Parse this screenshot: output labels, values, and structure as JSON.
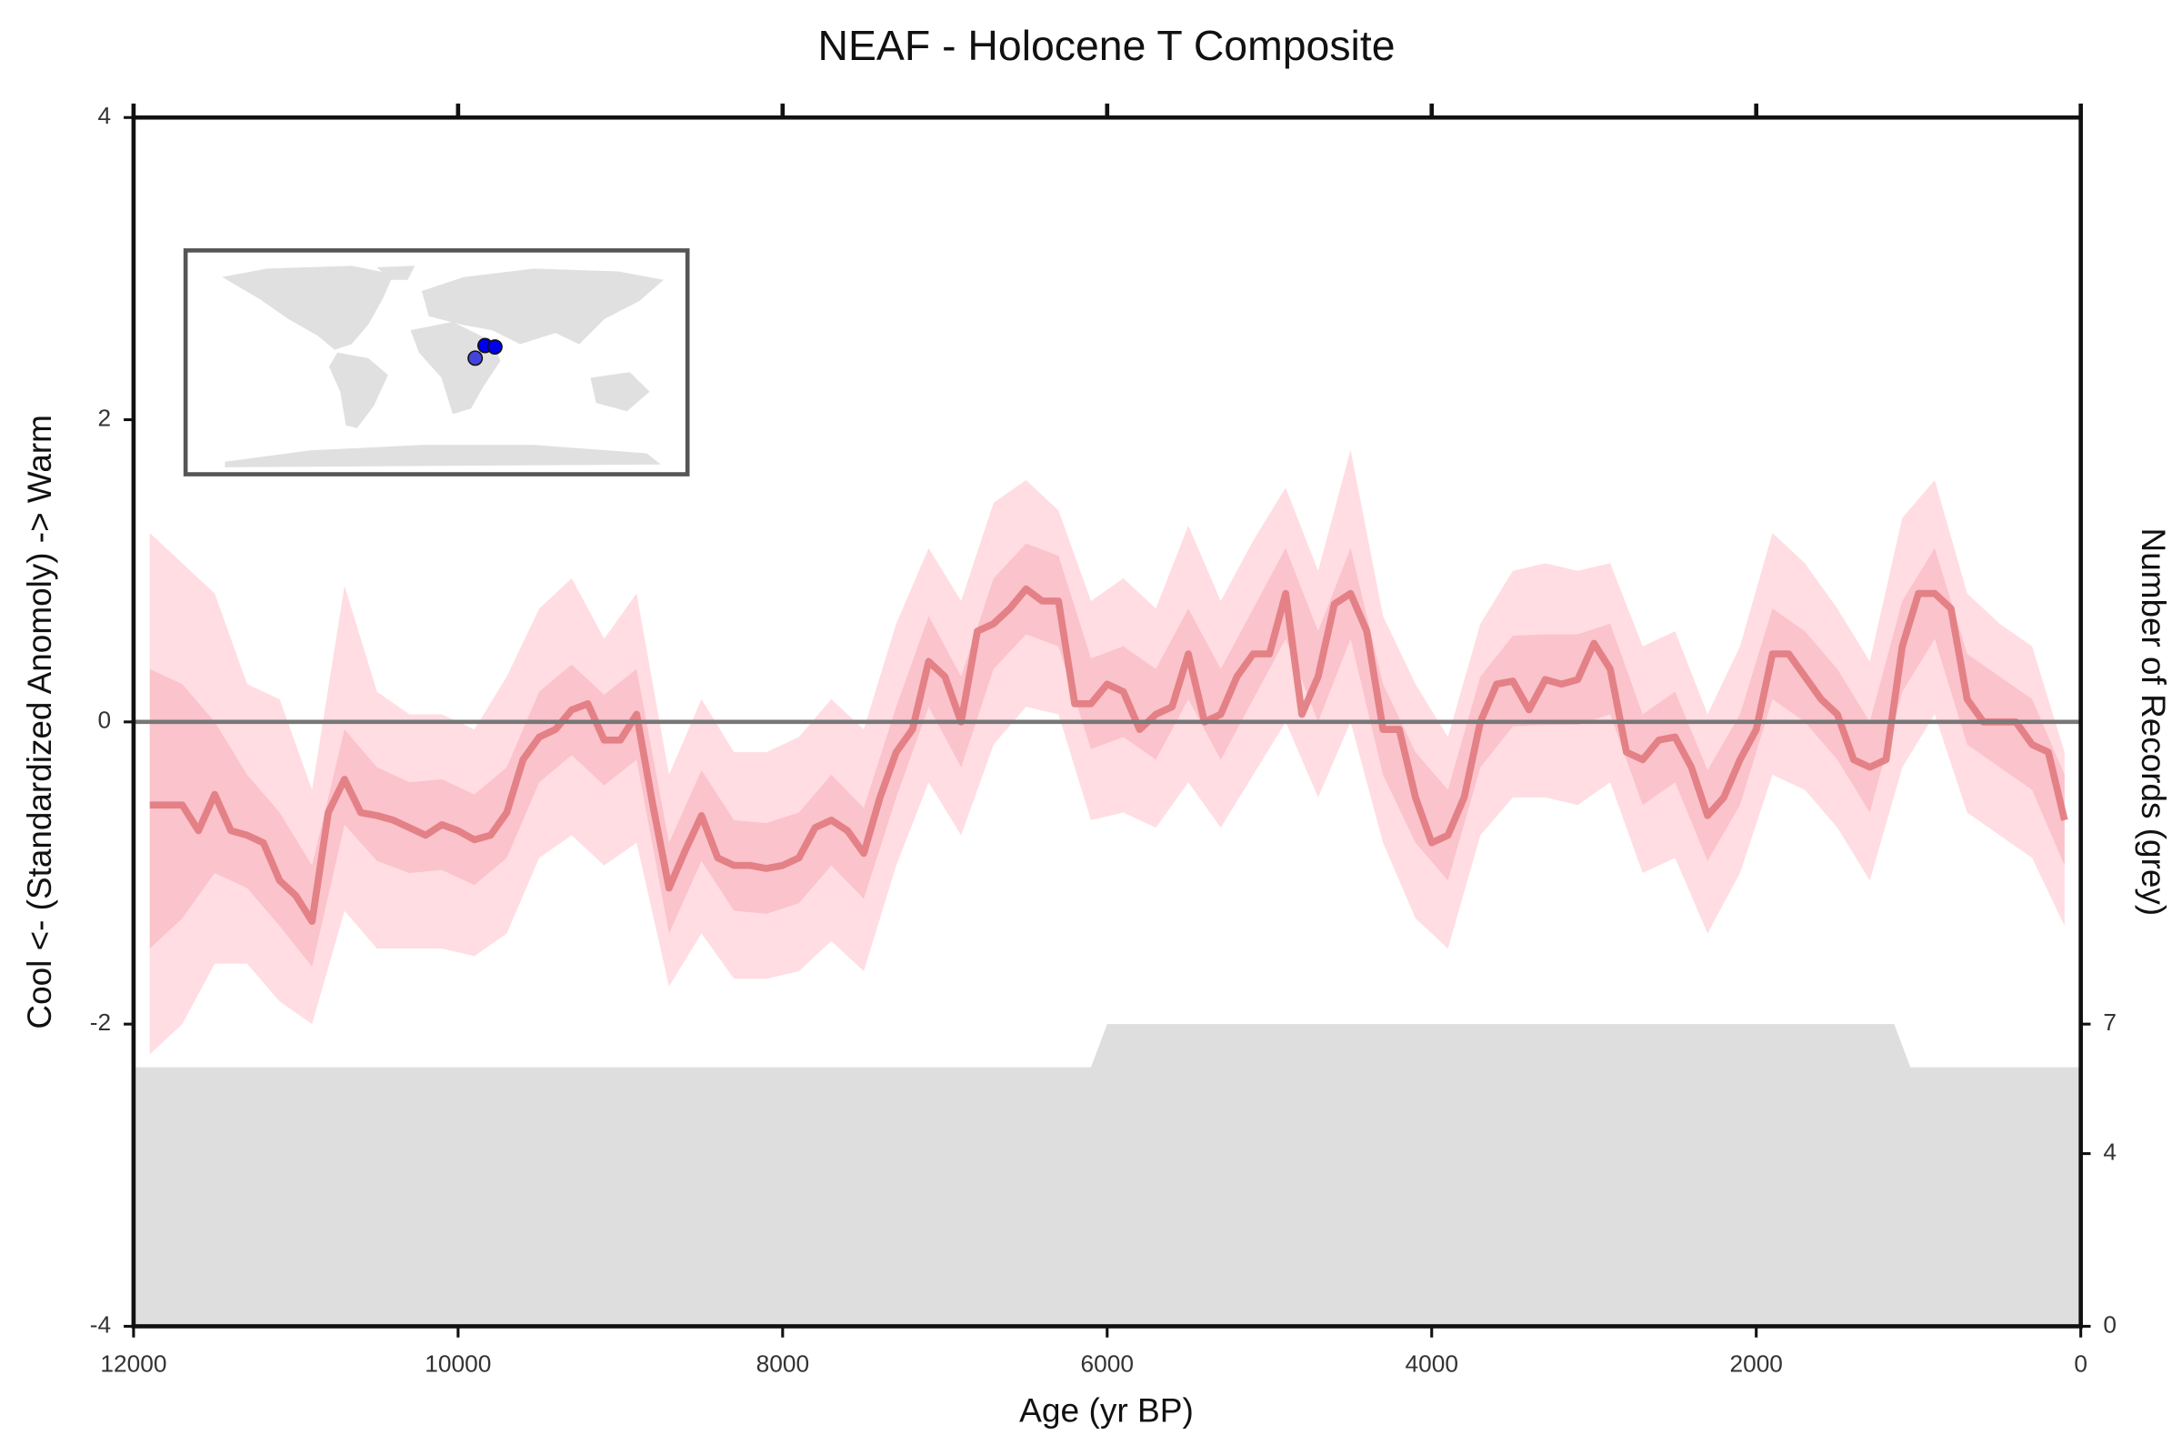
{
  "chart_data": {
    "type": "line",
    "title": "NEAF - Holocene T Composite",
    "xlabel": "Age (yr BP)",
    "ylabel": "Cool <- (Standardized Anomoly) -> Warm",
    "y2label": "Number of Records (grey)",
    "xlim": [
      12000,
      0
    ],
    "ylim": [
      -4,
      4
    ],
    "y2lim": [
      0,
      28
    ],
    "xticks": [
      12000,
      10000,
      8000,
      6000,
      4000,
      2000,
      0
    ],
    "yticks": [
      -4,
      -2,
      0,
      2,
      4
    ],
    "y2ticks": [
      0,
      4,
      7
    ],
    "hline": 0,
    "series": [
      {
        "kind": "area",
        "axis": "y2",
        "color": "#dedede",
        "x": [
          12000,
          6100,
          6000,
          1150,
          1050,
          0
        ],
        "values": [
          6,
          6,
          7,
          7,
          6,
          6
        ]
      },
      {
        "kind": "band",
        "color": "#ffdde2",
        "x": [
          11900,
          11700,
          11500,
          11300,
          11100,
          10900,
          10700,
          10500,
          10300,
          10100,
          9900,
          9700,
          9500,
          9300,
          9100,
          8900,
          8700,
          8500,
          8300,
          8100,
          7900,
          7700,
          7500,
          7300,
          7100,
          6900,
          6700,
          6500,
          6300,
          6100,
          5900,
          5700,
          5500,
          5300,
          5100,
          4900,
          4700,
          4500,
          4300,
          4100,
          3900,
          3700,
          3500,
          3300,
          3100,
          2900,
          2700,
          2500,
          2300,
          2100,
          1900,
          1700,
          1500,
          1300,
          1100,
          900,
          700,
          500,
          300,
          100
        ],
        "upper": [
          1.25,
          1.05,
          0.85,
          0.25,
          0.15,
          -0.45,
          0.9,
          0.2,
          0.05,
          0.05,
          -0.05,
          0.3,
          0.75,
          0.95,
          0.55,
          0.85,
          -0.35,
          0.15,
          -0.2,
          -0.2,
          -0.1,
          0.15,
          -0.05,
          0.65,
          1.15,
          0.8,
          1.45,
          1.6,
          1.4,
          0.8,
          0.95,
          0.75,
          1.3,
          0.8,
          1.2,
          1.55,
          1.0,
          1.8,
          0.7,
          0.25,
          -0.1,
          0.65,
          1.0,
          1.05,
          1.0,
          1.05,
          0.5,
          0.6,
          0.05,
          0.5,
          1.25,
          1.05,
          0.75,
          0.4,
          1.35,
          1.6,
          0.85,
          0.65,
          0.5,
          -0.2
        ],
        "lower": [
          -2.2,
          -2.0,
          -1.6,
          -1.6,
          -1.85,
          -2.0,
          -1.25,
          -1.5,
          -1.5,
          -1.5,
          -1.55,
          -1.4,
          -0.9,
          -0.75,
          -0.95,
          -0.8,
          -1.75,
          -1.4,
          -1.7,
          -1.7,
          -1.65,
          -1.45,
          -1.65,
          -0.95,
          -0.4,
          -0.75,
          -0.15,
          0.1,
          0.05,
          -0.65,
          -0.6,
          -0.7,
          -0.4,
          -0.7,
          -0.35,
          0.0,
          -0.5,
          0.0,
          -0.8,
          -1.3,
          -1.5,
          -0.75,
          -0.5,
          -0.5,
          -0.55,
          -0.4,
          -1.0,
          -0.9,
          -1.4,
          -1.0,
          -0.35,
          -0.45,
          -0.7,
          -1.05,
          -0.3,
          0.05,
          -0.6,
          -0.75,
          -0.9,
          -1.35
        ]
      },
      {
        "kind": "band",
        "color": "#fbc3cb",
        "x": [
          11900,
          11700,
          11500,
          11300,
          11100,
          10900,
          10700,
          10500,
          10300,
          10100,
          9900,
          9700,
          9500,
          9300,
          9100,
          8900,
          8700,
          8500,
          8300,
          8100,
          7900,
          7700,
          7500,
          7300,
          7100,
          6900,
          6700,
          6500,
          6300,
          6100,
          5900,
          5700,
          5500,
          5300,
          5100,
          4900,
          4700,
          4500,
          4300,
          4100,
          3900,
          3700,
          3500,
          3300,
          3100,
          2900,
          2700,
          2500,
          2300,
          2100,
          1900,
          1700,
          1500,
          1300,
          1100,
          900,
          700,
          500,
          300,
          100
        ],
        "upper": [
          0.35,
          0.25,
          0.0,
          -0.35,
          -0.6,
          -0.95,
          -0.05,
          -0.3,
          -0.4,
          -0.38,
          -0.48,
          -0.3,
          0.2,
          0.38,
          0.18,
          0.35,
          -0.8,
          -0.32,
          -0.65,
          -0.67,
          -0.6,
          -0.35,
          -0.57,
          0.1,
          0.7,
          0.3,
          0.95,
          1.18,
          1.1,
          0.42,
          0.5,
          0.35,
          0.75,
          0.35,
          0.75,
          1.15,
          0.6,
          1.15,
          0.25,
          -0.2,
          -0.45,
          0.3,
          0.57,
          0.58,
          0.58,
          0.65,
          0.05,
          0.2,
          -0.32,
          0.05,
          0.75,
          0.6,
          0.35,
          0.0,
          0.8,
          1.15,
          0.45,
          0.3,
          0.15,
          -0.35
        ],
        "lower": [
          -1.5,
          -1.3,
          -1.0,
          -1.1,
          -1.35,
          -1.62,
          -0.68,
          -0.92,
          -1.0,
          -0.98,
          -1.08,
          -0.9,
          -0.4,
          -0.22,
          -0.42,
          -0.25,
          -1.4,
          -0.92,
          -1.25,
          -1.27,
          -1.2,
          -0.95,
          -1.17,
          -0.5,
          0.1,
          -0.3,
          0.35,
          0.58,
          0.5,
          -0.18,
          -0.1,
          -0.25,
          0.15,
          -0.25,
          0.15,
          0.55,
          0.0,
          0.55,
          -0.35,
          -0.8,
          -1.05,
          -0.3,
          -0.03,
          -0.02,
          -0.02,
          0.05,
          -0.55,
          -0.4,
          -0.92,
          -0.55,
          0.15,
          0.0,
          -0.25,
          -0.6,
          0.2,
          0.55,
          -0.15,
          -0.3,
          -0.45,
          -0.95
        ]
      },
      {
        "kind": "line",
        "color": "#e07a7e",
        "x": [
          11900,
          11800,
          11700,
          11600,
          11500,
          11400,
          11300,
          11200,
          11100,
          11000,
          10900,
          10800,
          10700,
          10600,
          10500,
          10400,
          10300,
          10200,
          10100,
          10000,
          9900,
          9800,
          9700,
          9600,
          9500,
          9400,
          9300,
          9200,
          9100,
          9000,
          8900,
          8800,
          8700,
          8600,
          8500,
          8400,
          8300,
          8200,
          8100,
          8000,
          7900,
          7800,
          7700,
          7600,
          7500,
          7400,
          7300,
          7200,
          7100,
          7000,
          6900,
          6800,
          6700,
          6600,
          6500,
          6400,
          6300,
          6200,
          6100,
          6000,
          5900,
          5800,
          5700,
          5600,
          5500,
          5400,
          5300,
          5200,
          5100,
          5000,
          4900,
          4800,
          4700,
          4600,
          4500,
          4400,
          4300,
          4200,
          4100,
          4000,
          3900,
          3800,
          3700,
          3600,
          3500,
          3400,
          3300,
          3200,
          3100,
          3000,
          2900,
          2800,
          2700,
          2600,
          2500,
          2400,
          2300,
          2200,
          2100,
          2000,
          1900,
          1800,
          1700,
          1600,
          1500,
          1400,
          1300,
          1200,
          1100,
          1000,
          900,
          800,
          700,
          600,
          500,
          400,
          300,
          200,
          100
        ],
        "values": [
          -0.55,
          -0.55,
          -0.55,
          -0.72,
          -0.48,
          -0.72,
          -0.75,
          -0.8,
          -1.05,
          -1.15,
          -1.32,
          -0.6,
          -0.38,
          -0.6,
          -0.62,
          -0.65,
          -0.7,
          -0.75,
          -0.68,
          -0.72,
          -0.78,
          -0.75,
          -0.6,
          -0.25,
          -0.1,
          -0.05,
          0.08,
          0.12,
          -0.12,
          -0.12,
          0.05,
          -0.55,
          -1.1,
          -0.85,
          -0.62,
          -0.9,
          -0.95,
          -0.95,
          -0.97,
          -0.95,
          -0.9,
          -0.7,
          -0.65,
          -0.72,
          -0.87,
          -0.5,
          -0.2,
          -0.05,
          0.4,
          0.3,
          0.0,
          0.6,
          0.65,
          0.75,
          0.88,
          0.8,
          0.8,
          0.12,
          0.12,
          0.25,
          0.2,
          -0.05,
          0.05,
          0.1,
          0.45,
          0.0,
          0.05,
          0.3,
          0.45,
          0.45,
          0.85,
          0.05,
          0.3,
          0.78,
          0.85,
          0.6,
          -0.05,
          -0.05,
          -0.5,
          -0.8,
          -0.75,
          -0.5,
          0.0,
          0.25,
          0.27,
          0.08,
          0.28,
          0.25,
          0.28,
          0.52,
          0.35,
          -0.2,
          -0.25,
          -0.12,
          -0.1,
          -0.3,
          -0.62,
          -0.5,
          -0.25,
          -0.05,
          0.45,
          0.45,
          0.3,
          0.15,
          0.05,
          -0.25,
          -0.3,
          -0.25,
          0.5,
          0.85,
          0.85,
          0.75,
          0.15,
          0.0,
          0.0,
          0.0,
          -0.15,
          -0.2,
          -0.65
        ]
      }
    ]
  }
}
